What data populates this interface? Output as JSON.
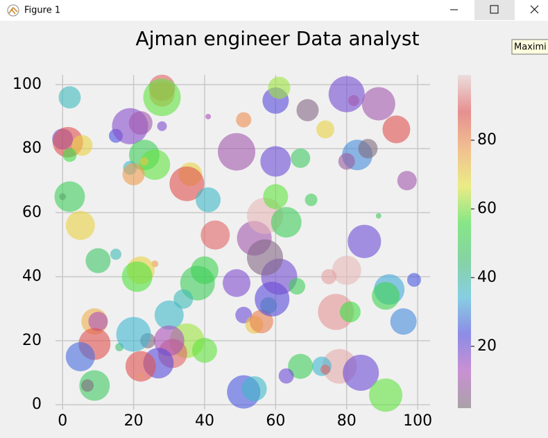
{
  "window": {
    "title": "Figure 1",
    "tooltip": "Maximi"
  },
  "chart_data": {
    "type": "scatter",
    "title": "Ajman engineer Data analyst",
    "x": [
      2,
      0,
      1.5,
      5.5,
      2,
      0,
      2,
      5,
      10,
      15,
      9,
      10,
      9,
      5,
      9,
      7,
      16,
      15,
      19,
      22,
      28,
      28,
      28,
      28,
      23,
      26,
      23,
      19,
      20,
      36,
      35,
      41,
      41,
      51,
      49,
      43,
      26,
      22,
      21,
      40,
      38,
      34,
      30,
      35,
      40,
      31,
      30,
      27,
      24,
      22,
      22,
      20,
      49,
      51,
      54,
      56,
      58,
      59,
      61,
      54,
      57,
      57,
      60,
      63,
      66,
      60,
      67,
      60,
      61,
      69,
      74,
      70,
      80,
      82,
      89,
      94,
      83,
      86,
      80,
      97,
      89,
      85,
      80,
      75,
      92,
      91,
      99,
      96,
      77,
      81,
      78,
      84,
      91,
      73,
      74,
      67,
      63,
      51,
      54
    ],
    "y": [
      96,
      83,
      82,
      81,
      78,
      65,
      65,
      56,
      45,
      47,
      26,
      26,
      19,
      15,
      6,
      6,
      18,
      84,
      87,
      88,
      87,
      99,
      97,
      96,
      78,
      75,
      76,
      74,
      72,
      72,
      69,
      64,
      90,
      89,
      79,
      53,
      44,
      42,
      40,
      42,
      38,
      33,
      28,
      20,
      17,
      16,
      20,
      13,
      20,
      12,
      9,
      22,
      38,
      28,
      25,
      26,
      31,
      33,
      40,
      52,
      46,
      59,
      65,
      57,
      37,
      76,
      77,
      95,
      99,
      92,
      86,
      64,
      97,
      95,
      94,
      86,
      78,
      80,
      76,
      70,
      59,
      51,
      42,
      40,
      36,
      34,
      39,
      26,
      29,
      29,
      12,
      10,
      3,
      12,
      11,
      12,
      9,
      4,
      5
    ],
    "sizes": [
      16,
      15,
      22,
      15,
      10,
      5,
      22,
      21,
      18,
      8,
      19,
      14,
      23,
      21,
      22,
      9,
      6,
      10,
      26,
      17,
      7,
      19,
      18,
      27,
      22,
      22,
      6,
      10,
      16,
      17,
      25,
      18,
      4,
      11,
      27,
      21,
      5,
      20,
      22,
      20,
      25,
      14,
      21,
      25,
      18,
      21,
      22,
      22,
      11,
      22,
      3,
      25,
      20,
      12,
      13,
      17,
      12,
      25,
      26,
      25,
      26,
      26,
      18,
      22,
      12,
      22,
      14,
      19,
      16,
      16,
      13,
      9,
      26,
      8,
      24,
      20,
      22,
      14,
      12,
      14,
      4,
      24,
      21,
      11,
      22,
      20,
      10,
      19,
      26,
      15,
      25,
      26,
      24,
      14,
      7,
      18,
      11,
      24,
      18
    ],
    "c": [
      37,
      20,
      88,
      70,
      55,
      5,
      50,
      70,
      47,
      38,
      75,
      12,
      88,
      27,
      48,
      3,
      45,
      24,
      17,
      10,
      18,
      90,
      80,
      58,
      50,
      58,
      72,
      36,
      78,
      70,
      88,
      36,
      12,
      80,
      10,
      90,
      78,
      70,
      57,
      52,
      50,
      38,
      36,
      62,
      58,
      90,
      12,
      22,
      3,
      88,
      78,
      35,
      18,
      20,
      72,
      82,
      40,
      22,
      19,
      10,
      4,
      97,
      58,
      50,
      50,
      20,
      48,
      22,
      62,
      4,
      70,
      50,
      19,
      10,
      10,
      88,
      30,
      3,
      8,
      10,
      48,
      20,
      97,
      95,
      33,
      52,
      25,
      30,
      94,
      55,
      96,
      20,
      58,
      35,
      90,
      50,
      20,
      25,
      36
    ],
    "clim": [
      2,
      99
    ],
    "cticks": [
      20,
      40,
      60,
      80
    ],
    "colormap": [
      "#7a6e78",
      "#b050c0",
      "#4a4ae0",
      "#40b8d8",
      "#40c070",
      "#40e040",
      "#e8e840",
      "#f0a050",
      "#e05050",
      "#e8d0d0"
    ],
    "opacity": 0.6,
    "xlim": [
      -2,
      103.5
    ],
    "ylim": [
      -1.5,
      103
    ],
    "xticks": [
      0,
      20,
      40,
      60,
      80,
      100
    ],
    "yticks": [
      0,
      20,
      40,
      60,
      80,
      100
    ],
    "grid": true
  }
}
